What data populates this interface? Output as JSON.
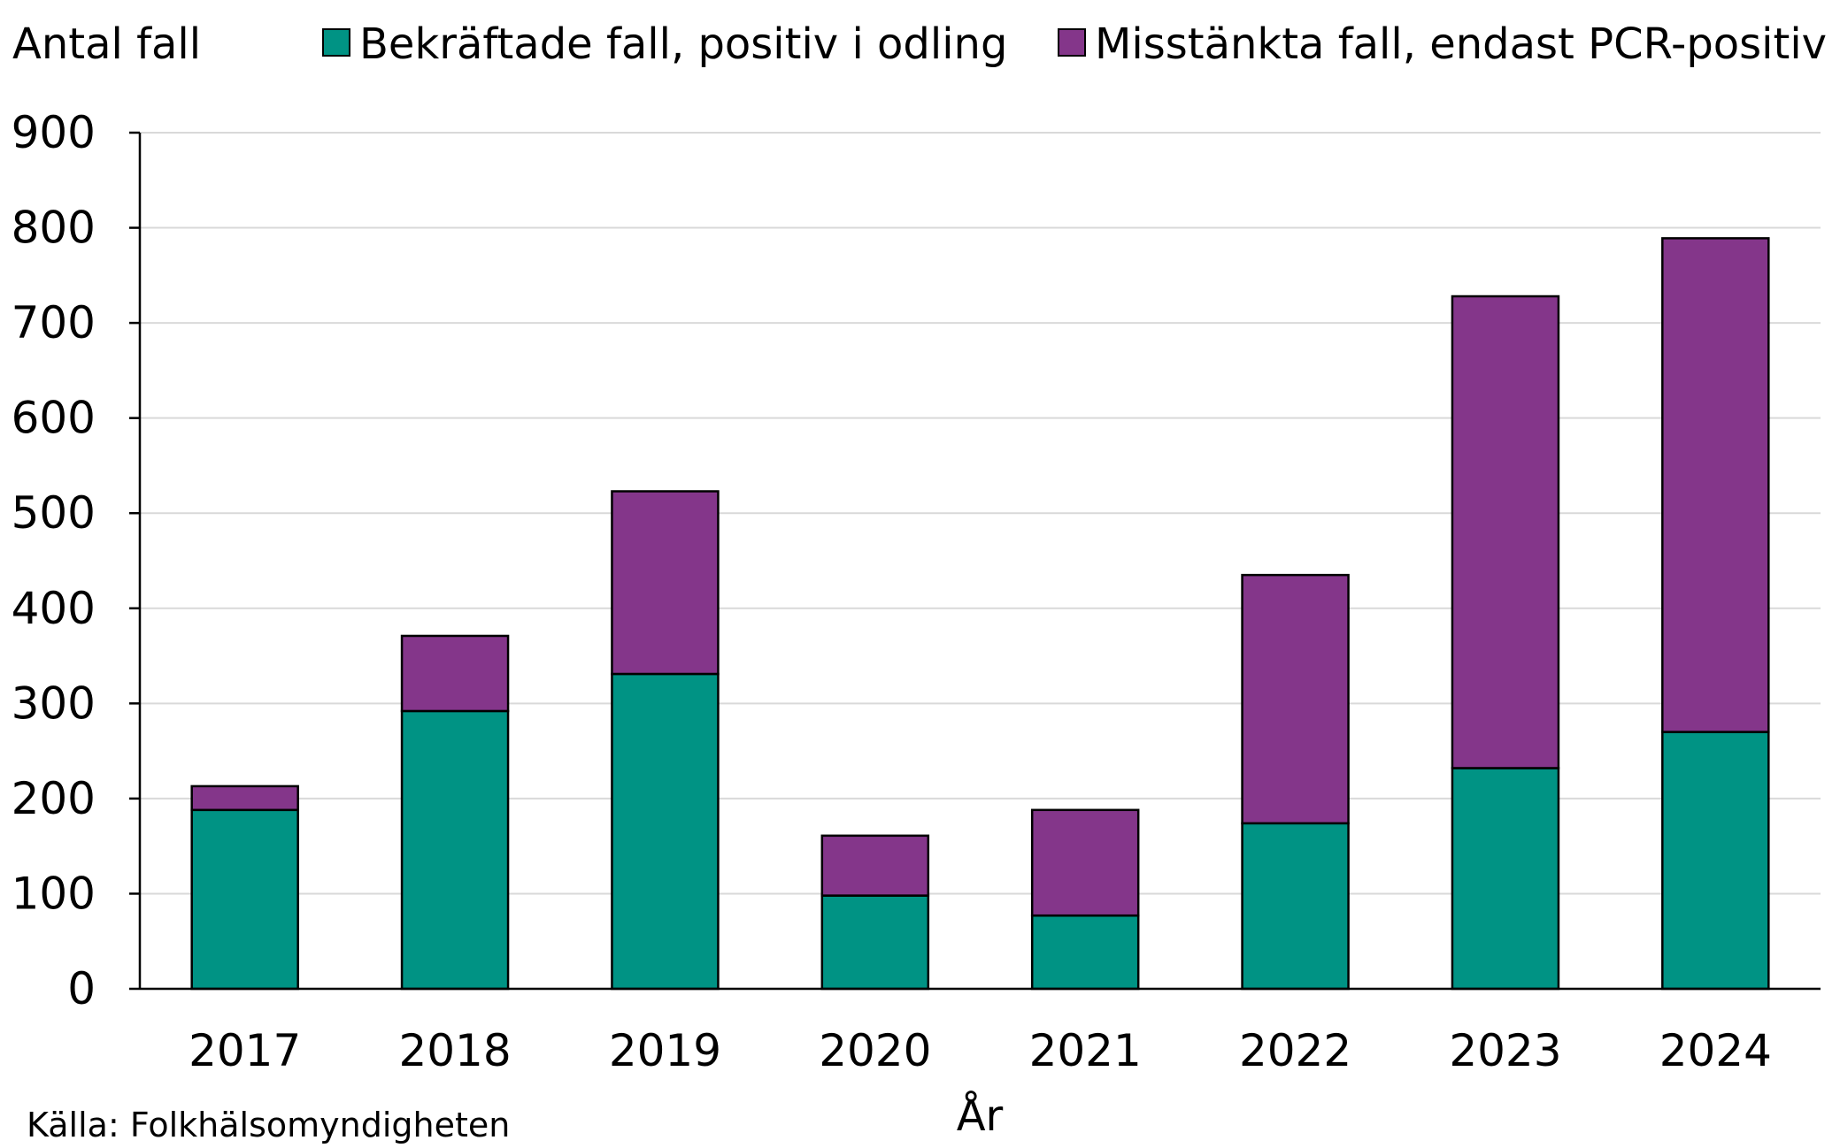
{
  "chart_data": {
    "type": "bar",
    "stacked": true,
    "categories": [
      "2017",
      "2018",
      "2019",
      "2020",
      "2021",
      "2022",
      "2023",
      "2024"
    ],
    "series": [
      {
        "name": "Bekräftade fall, positiv i odling",
        "color": "#009384",
        "values": [
          188,
          292,
          331,
          98,
          77,
          174,
          232,
          270
        ]
      },
      {
        "name": "Misstänkta fall, endast PCR-positiv",
        "color": "#84368a",
        "values": [
          25,
          79,
          192,
          63,
          111,
          261,
          496,
          519
        ]
      }
    ],
    "ylabel": "Antal fall",
    "xlabel": "År",
    "ylim": [
      0,
      900
    ],
    "yticks": [
      0,
      100,
      200,
      300,
      400,
      500,
      600,
      700,
      800,
      900
    ],
    "grid": true,
    "legend_position": "top",
    "source": "Källa: Folkhälsomyndigheten"
  }
}
